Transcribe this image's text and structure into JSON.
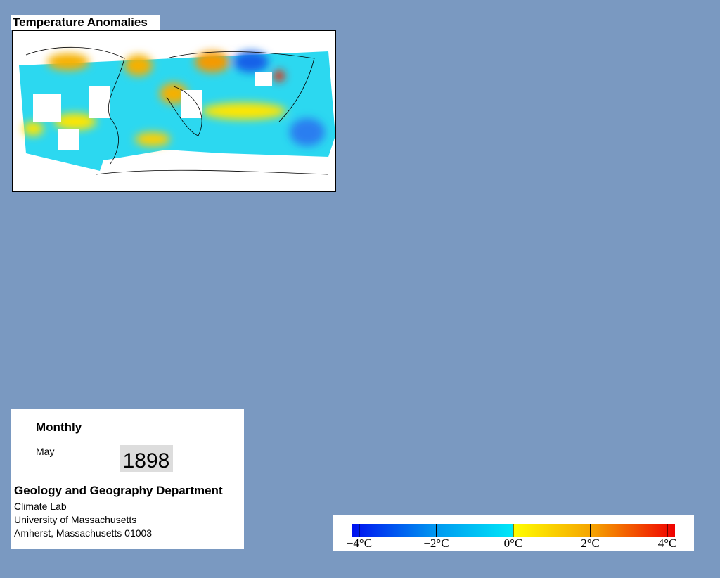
{
  "title": "Temperature Anomalies",
  "panel": {
    "frequency": "Monthly",
    "month": "May",
    "year": "1898",
    "department": "Geology and Geography Department",
    "lines": [
      "Climate Lab",
      "University of Massachusetts",
      "Amherst, Massachusetts 01003"
    ]
  },
  "colorbar": {
    "lim": [
      -4.2,
      4.2
    ],
    "ticks": [
      {
        "value": -4,
        "label": "−4°C"
      },
      {
        "value": -2,
        "label": "−2°C"
      },
      {
        "value": 0,
        "label": "0°C"
      },
      {
        "value": 2,
        "label": "2°C"
      },
      {
        "value": 4,
        "label": "4°C"
      }
    ]
  }
}
